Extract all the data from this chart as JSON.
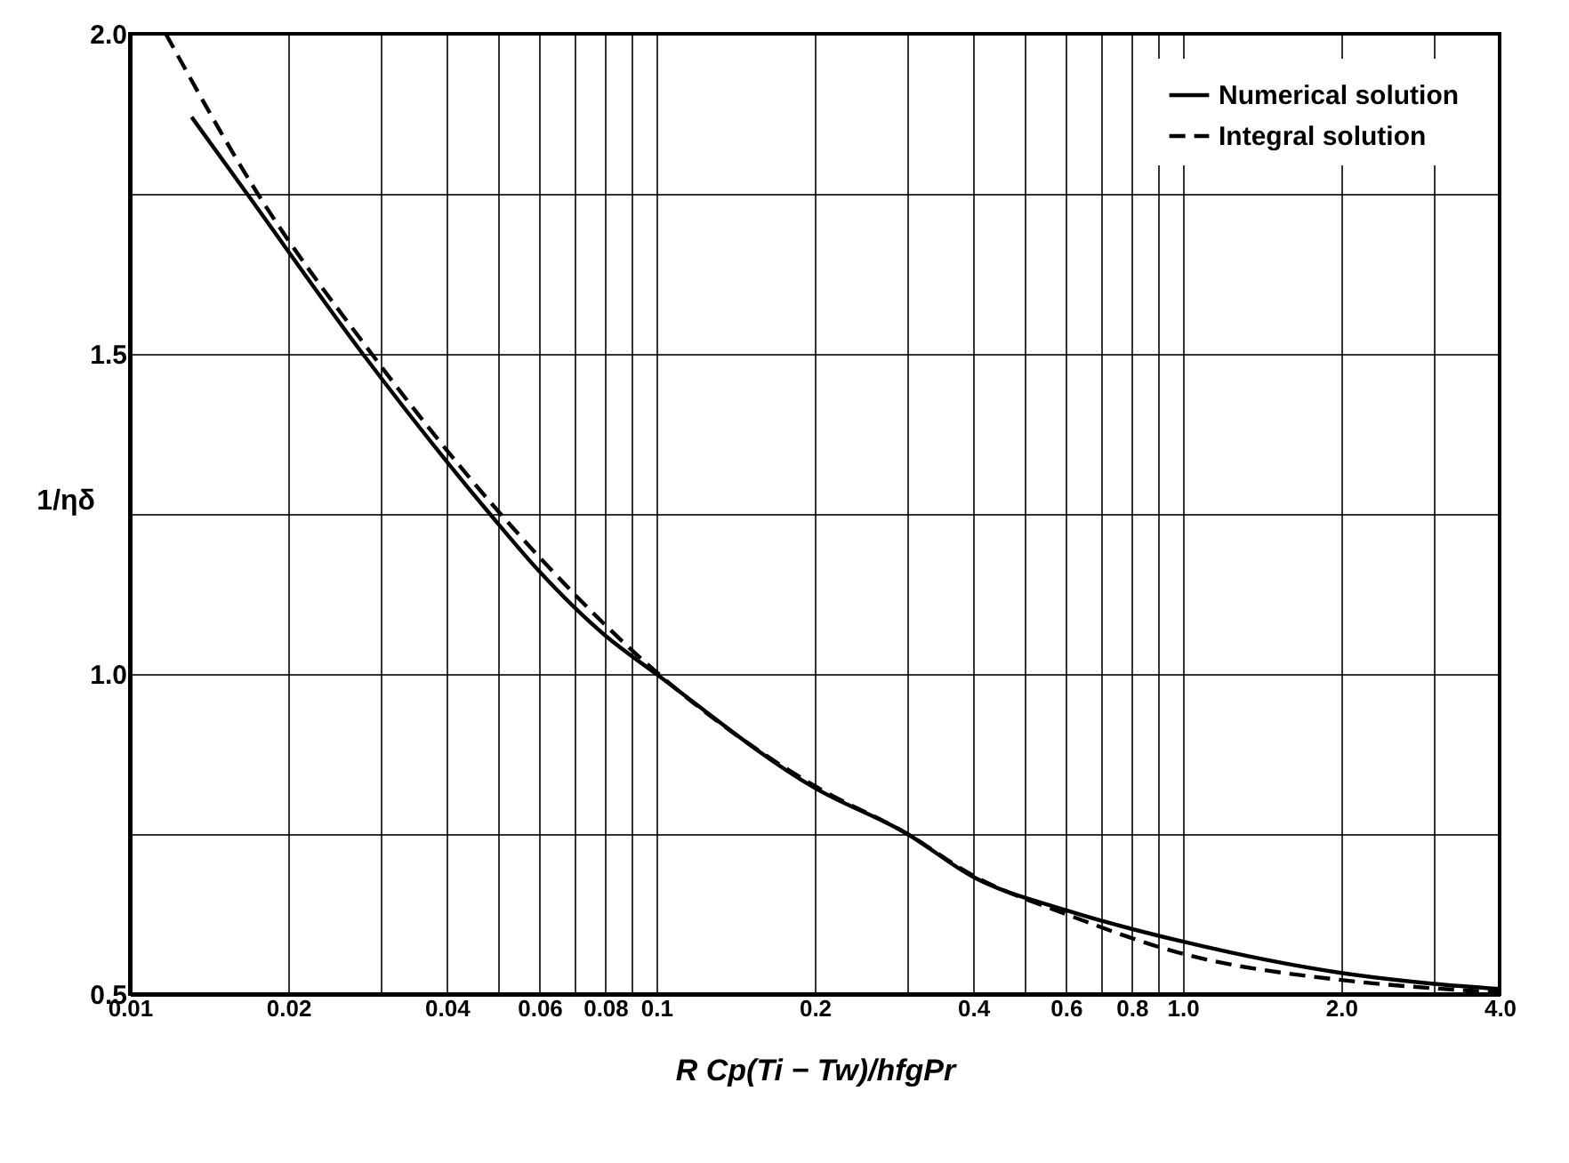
{
  "chart_data": {
    "type": "line",
    "xlabel": "R Cp(Ti − Tw)/hfgPr",
    "ylabel": "1/ηδ",
    "log": "x",
    "xlim": [
      0.01,
      4.0
    ],
    "xticks": [
      0.01,
      0.02,
      {
        "value": 0.03,
        "label": null
      },
      0.04,
      {
        "value": 0.05,
        "label": null
      },
      0.06,
      {
        "value": 0.07,
        "label": null
      },
      0.08,
      {
        "value": 0.09,
        "label": null
      },
      0.1,
      0.2,
      {
        "value": 0.3,
        "label": null
      },
      0.4,
      {
        "value": 0.5,
        "label": null
      },
      0.6,
      {
        "value": 0.7,
        "label": null
      },
      0.8,
      {
        "value": 0.9,
        "label": null
      },
      {
        "value": 1.0,
        "label": "1.0"
      },
      {
        "value": 2.0,
        "label": "2.0"
      },
      {
        "value": 3.0,
        "label": null
      },
      {
        "value": 4.0,
        "label": "4.0"
      }
    ],
    "ylim": [
      0.5,
      2.0
    ],
    "yticks": [
      0.5,
      {
        "value": 0.75,
        "label": null
      },
      {
        "value": 1.0,
        "label": "1.0"
      },
      {
        "value": 1.25,
        "label": null
      },
      1.5,
      {
        "value": 1.75,
        "label": null
      },
      {
        "value": 2.0,
        "label": "2.0"
      }
    ],
    "grid": true,
    "legend": "top right",
    "series": [
      {
        "name": "Numerical solution",
        "color": "#000000",
        "line_style": "solid",
        "x": [
          0.0131,
          0.0167,
          0.0277,
          0.0483,
          0.06,
          0.08,
          0.1,
          0.2,
          0.3,
          0.4,
          0.6,
          1.0,
          2.0,
          3.0,
          4.0
        ],
        "values": [
          1.87,
          1.75,
          1.5,
          1.25,
          1.16,
          1.06,
          1.0,
          0.822,
          0.75,
          0.683,
          0.631,
          0.582,
          0.533,
          0.516,
          0.508
        ]
      },
      {
        "name": "Integral solution",
        "color": "#000000",
        "line_style": "dashed",
        "x": [
          0.0117,
          0.0175,
          0.0288,
          0.0506,
          0.101,
          0.2,
          0.3,
          0.4,
          0.6,
          1.0,
          2.0,
          3.0,
          4.0
        ],
        "values": [
          2.0,
          1.75,
          1.5,
          1.25,
          1.0,
          0.825,
          0.75,
          0.685,
          0.625,
          0.563,
          0.522,
          0.509,
          0.503
        ]
      }
    ]
  }
}
